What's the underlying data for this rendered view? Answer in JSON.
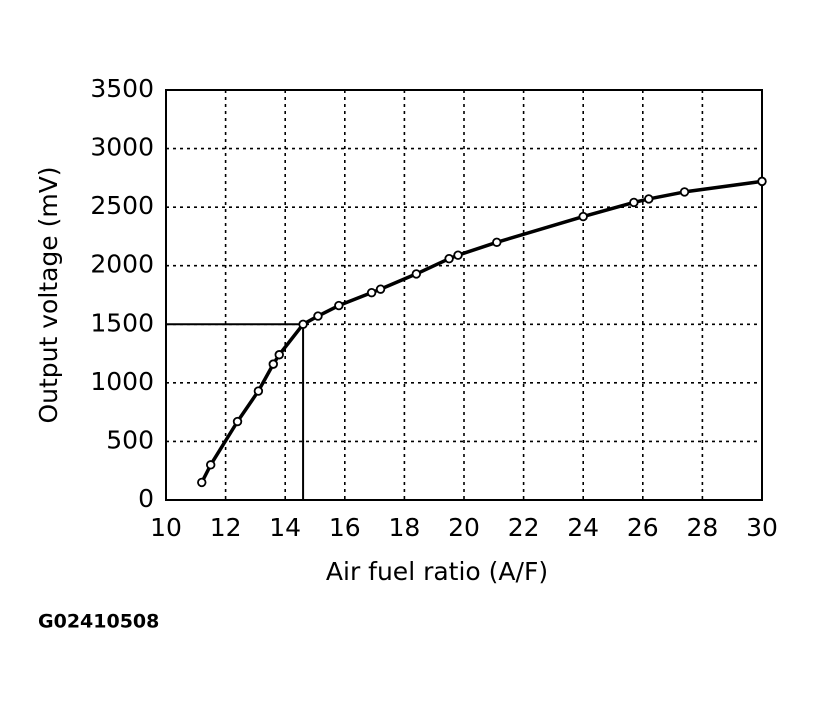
{
  "chart_data": {
    "type": "line",
    "xlabel": "Air fuel ratio (A/F)",
    "ylabel": "Output voltage (mV)",
    "x": [
      11.2,
      11.5,
      12.4,
      13.1,
      13.6,
      13.8,
      14.6,
      15.1,
      15.8,
      16.9,
      17.2,
      18.4,
      19.5,
      19.8,
      21.1,
      24,
      25.7,
      26.2,
      27.4,
      30
    ],
    "series": [
      {
        "color": "#000000",
        "values": [
          150,
          300,
          670,
          930,
          1160,
          1240,
          1500,
          1570,
          1660,
          1770,
          1800,
          1930,
          2060,
          2090,
          2200,
          2420,
          2540,
          2570,
          2630,
          2720
        ]
      }
    ],
    "reference": {
      "x": 14.6,
      "y": 1500
    },
    "xlim": [
      10,
      30
    ],
    "xticks": [
      10,
      12,
      14,
      16,
      18,
      20,
      22,
      24,
      26,
      28,
      30
    ],
    "ylim": [
      0,
      3500
    ],
    "yticks": [
      0,
      500,
      1000,
      1500,
      2000,
      2500,
      3000,
      3500
    ],
    "grid": true
  },
  "figure_id": "G02410508"
}
